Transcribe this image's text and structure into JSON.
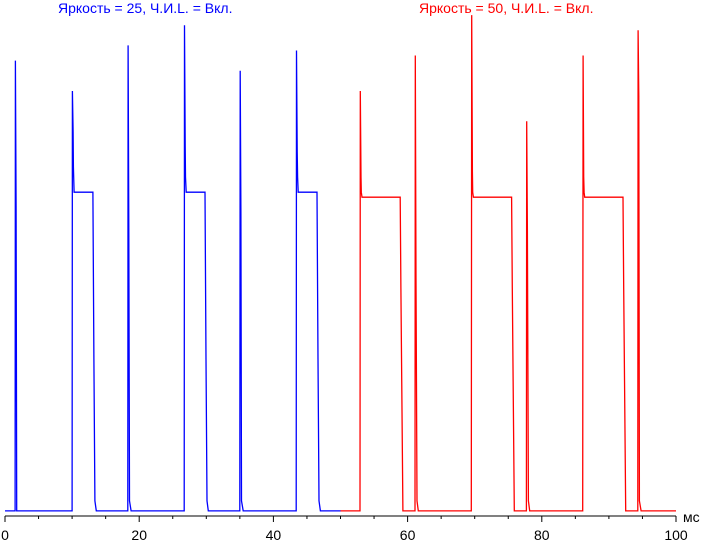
{
  "chart_data": {
    "type": "line",
    "xlabel": "мс",
    "ylabel": "",
    "xlim": [
      0,
      100
    ],
    "x_ticks": [
      "0",
      "20",
      "40",
      "60",
      "80",
      "100"
    ],
    "x_tick_values": [
      0,
      20,
      40,
      60,
      80,
      100
    ],
    "ylim": [
      0,
      100
    ],
    "grid": false,
    "series": [
      {
        "name": "Яркость = 25, Ч.И.L. = Вкл.",
        "color": "#0000ff",
        "x": [
          0,
          1.5,
          1.55,
          1.65,
          1.75,
          2.0,
          10.0,
          10.05,
          10.15,
          10.2,
          10.3,
          10.5,
          13.1,
          13.25,
          13.4,
          13.6,
          18.3,
          18.35,
          18.45,
          18.55,
          18.8,
          26.7,
          26.75,
          26.85,
          26.9,
          27.0,
          27.2,
          29.8,
          29.95,
          30.1,
          30.3,
          35.0,
          35.05,
          35.15,
          35.25,
          35.5,
          43.4,
          43.45,
          43.55,
          43.6,
          43.7,
          43.9,
          46.5,
          46.65,
          46.8,
          47.0,
          50.0
        ],
        "values": [
          1,
          1,
          90,
          61,
          1,
          1,
          1,
          84,
          76,
          69,
          64,
          64,
          64,
          31,
          3,
          1,
          1,
          93,
          57,
          3,
          1,
          1,
          97,
          73,
          67,
          64,
          64,
          64,
          31,
          3,
          1,
          1,
          88,
          60,
          3,
          1,
          1,
          92,
          72,
          67,
          64,
          64,
          64,
          31,
          3,
          1,
          1
        ]
      },
      {
        "name": "Яркость = 50, Ч.И.L. = Вкл.",
        "color": "#ff0000",
        "x": [
          50.0,
          52.9,
          52.95,
          53.05,
          53.1,
          53.2,
          53.4,
          58.9,
          59.0,
          59.3,
          61.1,
          61.15,
          61.25,
          61.4,
          61.6,
          69.5,
          69.55,
          69.65,
          69.7,
          69.8,
          70.0,
          75.5,
          75.6,
          75.9,
          77.7,
          77.75,
          77.85,
          78.0,
          78.2,
          86.1,
          86.15,
          86.25,
          86.3,
          86.4,
          86.6,
          92.1,
          92.2,
          92.5,
          94.3,
          94.35,
          94.45,
          94.55,
          94.8,
          100.0
        ],
        "values": [
          1,
          1,
          84,
          67,
          64,
          63,
          63,
          63,
          45,
          1,
          1,
          91,
          47,
          3,
          1,
          1,
          99,
          68,
          64,
          63,
          63,
          63,
          45,
          1,
          1,
          78,
          56,
          3,
          1,
          1,
          91,
          67,
          64,
          63,
          63,
          63,
          45,
          1,
          1,
          96,
          83,
          3,
          1,
          1
        ]
      }
    ]
  }
}
